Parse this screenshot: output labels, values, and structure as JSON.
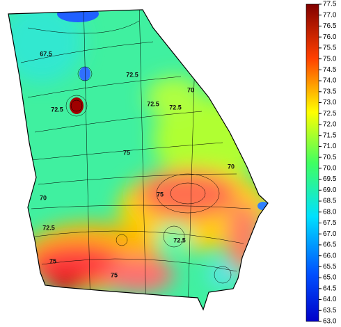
{
  "colorbar": {
    "range": [
      63,
      77.5
    ],
    "ticks": [
      {
        "value": 63,
        "label": "63.0"
      },
      {
        "value": 63.5,
        "label": "63.5"
      },
      {
        "value": 64,
        "label": "64.0"
      },
      {
        "value": 64.5,
        "label": "64.5"
      },
      {
        "value": 65,
        "label": "65.0"
      },
      {
        "value": 65.5,
        "label": "65.5"
      },
      {
        "value": 66,
        "label": "66.0"
      },
      {
        "value": 66.5,
        "label": "66.5"
      },
      {
        "value": 67,
        "label": "67.0"
      },
      {
        "value": 67.5,
        "label": "67.5"
      },
      {
        "value": 68,
        "label": "68.0"
      },
      {
        "value": 68.5,
        "label": "68.5"
      },
      {
        "value": 69,
        "label": "69.0"
      },
      {
        "value": 69.5,
        "label": "69.5"
      },
      {
        "value": 70,
        "label": "70.0"
      },
      {
        "value": 70.5,
        "label": "70.5"
      },
      {
        "value": 71,
        "label": "71.0"
      },
      {
        "value": 71.5,
        "label": "71.5"
      },
      {
        "value": 72,
        "label": "72.0"
      },
      {
        "value": 72.5,
        "label": "72.5"
      },
      {
        "value": 73,
        "label": "73.0"
      },
      {
        "value": 73.5,
        "label": "73.5"
      },
      {
        "value": 74,
        "label": "74.0"
      },
      {
        "value": 74.5,
        "label": "74.5"
      },
      {
        "value": 75,
        "label": "75.0"
      },
      {
        "value": 75.5,
        "label": "75.5"
      },
      {
        "value": 76,
        "label": "76.0"
      },
      {
        "value": 76.5,
        "label": "76.5"
      },
      {
        "value": 77,
        "label": "77.0"
      },
      {
        "value": 77.5,
        "label": "77.5"
      }
    ]
  },
  "contour_labels": [
    "67.5",
    "72.5",
    "72.5",
    "72.5",
    "70",
    "75",
    "72.5",
    "75",
    "70",
    "72.5",
    "70",
    "72.5",
    "75",
    "75"
  ]
}
